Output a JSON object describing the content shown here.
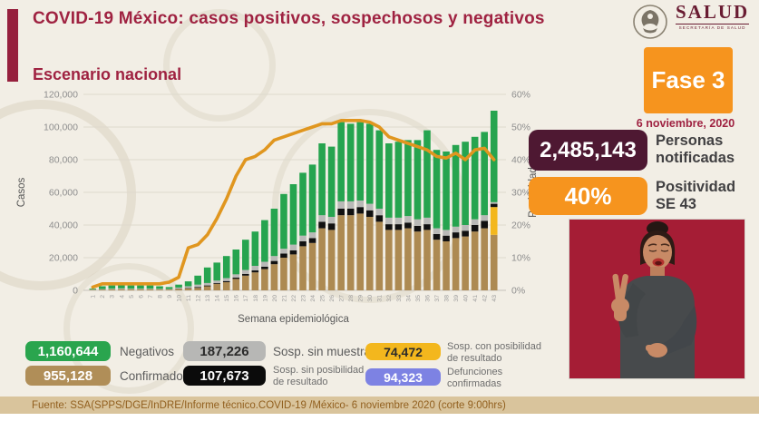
{
  "header": {
    "title": "COVID-19 México: casos positivos, sospechosos y negativos",
    "logo": {
      "name": "SALUD",
      "subtitle": "SECRETARÍA DE SALUD"
    }
  },
  "section_title": "Escenario nacional",
  "phase_badge": "Fase 3",
  "report_date": "6 noviembre, 2020",
  "stats": {
    "notified": {
      "value": "2,485,143",
      "label": "Personas notificadas",
      "color": "#4e1832"
    },
    "positivity": {
      "value": "40%",
      "label": "Positividad SE 43",
      "color": "#f6941e"
    }
  },
  "legend": {
    "negativos": {
      "value": "1,160,644",
      "label": "Negativos",
      "color": "#2aa54e"
    },
    "confirmados": {
      "value": "955,128",
      "label": "Confirmados",
      "color": "#b08e58"
    },
    "sosp_sin_muestra": {
      "value": "187,226",
      "label": "Sosp. sin muestra",
      "color": "#b7b7b5"
    },
    "sosp_sin_posibilidad": {
      "value": "107,673",
      "label": "Sosp. sin posibilidad de resultado",
      "color": "#0b0b0b"
    },
    "sosp_con_posibilidad": {
      "value": "74,472",
      "label": "Sosp. con posibilidad de resultado",
      "color": "#f3b71d"
    },
    "defunciones": {
      "value": "94,323",
      "label": "Defunciones confirmadas",
      "color": "#7d82e3"
    }
  },
  "footer": {
    "source": "Fuente: SSA(SPPS/DGE/InDRE/Informe técnico.COVID-19 /México- 6 noviembre 2020 (corte 9:00hrs)"
  },
  "chart_data": {
    "type": "bar",
    "subtype": "stacked bars with positivity line overlay",
    "title": "Escenario nacional",
    "xlabel": "Semana epidemiológica",
    "ylabel": "Casos",
    "y2label": "Positividad",
    "ylim": [
      0,
      120000
    ],
    "y2lim": [
      0,
      60
    ],
    "grid": true,
    "yticks": [
      "0",
      "20,000",
      "40,000",
      "60,000",
      "80,000",
      "100,000",
      "120,000"
    ],
    "y2ticks": [
      "0%",
      "10%",
      "20%",
      "30%",
      "40%",
      "50%",
      "60%"
    ],
    "x": [
      1,
      2,
      3,
      4,
      5,
      6,
      7,
      8,
      9,
      10,
      11,
      12,
      13,
      14,
      15,
      16,
      17,
      18,
      19,
      20,
      21,
      22,
      23,
      24,
      25,
      26,
      27,
      28,
      29,
      30,
      31,
      32,
      33,
      34,
      35,
      36,
      37,
      38,
      39,
      40,
      41,
      42,
      43
    ],
    "series": [
      {
        "name": "Confirmados",
        "color": "#ad8a52",
        "values": [
          300,
          500,
          600,
          700,
          600,
          600,
          600,
          500,
          500,
          800,
          1200,
          1500,
          2500,
          4000,
          5000,
          7000,
          9000,
          11000,
          13000,
          16000,
          20000,
          22000,
          27000,
          29000,
          38000,
          37000,
          46000,
          46000,
          47000,
          45000,
          42000,
          37000,
          37000,
          38000,
          36000,
          37000,
          31000,
          30000,
          32000,
          33000,
          36000,
          38000,
          34000
        ]
      },
      {
        "name": "Sosp. con posibilidad de resultado",
        "color": "#f3b71d",
        "values": [
          0,
          0,
          0,
          0,
          0,
          0,
          0,
          0,
          0,
          0,
          0,
          0,
          0,
          0,
          0,
          0,
          0,
          0,
          0,
          0,
          0,
          0,
          0,
          0,
          0,
          0,
          0,
          0,
          0,
          0,
          0,
          0,
          0,
          0,
          0,
          0,
          0,
          0,
          0,
          0,
          0,
          0,
          17000
        ]
      },
      {
        "name": "Sosp. sin posibilidad de resultado",
        "color": "#111111",
        "values": [
          0,
          0,
          0,
          0,
          0,
          0,
          0,
          0,
          0,
          200,
          300,
          500,
          500,
          500,
          700,
          800,
          1000,
          1200,
          1500,
          2000,
          2500,
          2500,
          3000,
          3000,
          4000,
          4000,
          4000,
          4000,
          4000,
          4000,
          4000,
          3500,
          3500,
          3500,
          3500,
          3500,
          3500,
          3500,
          3500,
          3500,
          4000,
          4500,
          2000
        ]
      },
      {
        "name": "Sosp. sin muestra",
        "color": "#b9b9b7",
        "values": [
          200,
          300,
          400,
          500,
          400,
          400,
          400,
          400,
          300,
          700,
          1000,
          1500,
          1500,
          1500,
          1800,
          2000,
          2500,
          2800,
          3000,
          3000,
          3000,
          3500,
          3500,
          3500,
          4000,
          4000,
          4500,
          4500,
          4000,
          4000,
          4000,
          4000,
          4000,
          4000,
          4000,
          4000,
          3500,
          3500,
          3500,
          3500,
          3500,
          3500,
          1000
        ]
      },
      {
        "name": "Negativos",
        "color": "#26a44f",
        "values": [
          500,
          1700,
          2000,
          2300,
          2000,
          2000,
          2000,
          1600,
          1200,
          1800,
          3000,
          5500,
          9500,
          11000,
          13500,
          15200,
          18500,
          21000,
          25500,
          29000,
          33500,
          37000,
          38500,
          41500,
          44000,
          43000,
          48500,
          47500,
          48000,
          49000,
          48000,
          45500,
          46500,
          46500,
          48500,
          53500,
          48000,
          48000,
          50000,
          51000,
          50500,
          51000,
          56000
        ]
      }
    ],
    "line_series": {
      "name": "Positividad",
      "color": "#e0961f",
      "axis": "right",
      "values": [
        1,
        2,
        2,
        2,
        2,
        2,
        2,
        2,
        2.5,
        4,
        13,
        14,
        17,
        22,
        28,
        35,
        40,
        41,
        43,
        46,
        47,
        48,
        49,
        50,
        51,
        51,
        52,
        52,
        52,
        51.5,
        50,
        47,
        46,
        45,
        44,
        43,
        41,
        40.5,
        42,
        40,
        43,
        43.5,
        40
      ]
    }
  }
}
